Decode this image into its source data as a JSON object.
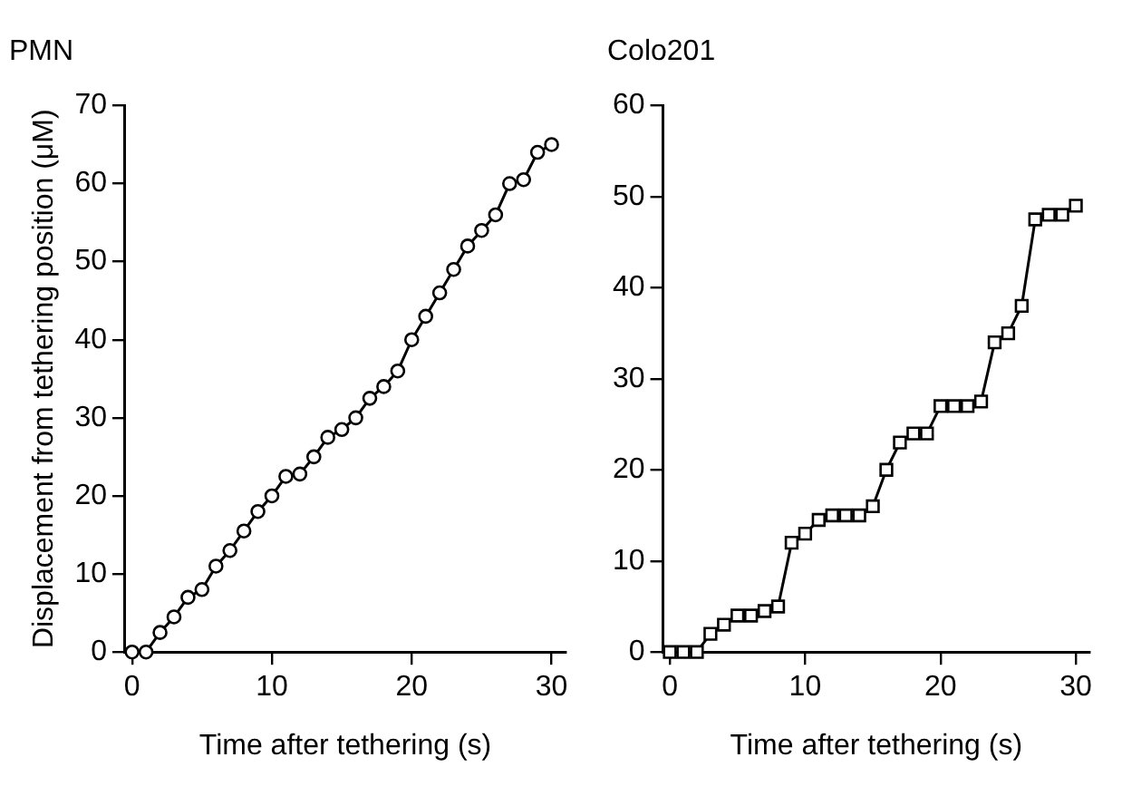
{
  "chart_data": [
    {
      "type": "line",
      "title": "PMN",
      "xlabel": "Time after tethering (s)",
      "ylabel": "Displacement from tethering position (μM)",
      "x": [
        0,
        1,
        2,
        3,
        4,
        5,
        6,
        7,
        8,
        9,
        10,
        11,
        12,
        13,
        14,
        15,
        16,
        17,
        18,
        19,
        20,
        21,
        22,
        23,
        24,
        25,
        26,
        27,
        28,
        29,
        30
      ],
      "series": [
        {
          "color": "#000000",
          "values": [
            0,
            0,
            2.5,
            4.5,
            7,
            8,
            11,
            13,
            15.5,
            18,
            20,
            22.5,
            22.8,
            25,
            27.5,
            28.5,
            30,
            32.5,
            34,
            36,
            40,
            43,
            46,
            49,
            52,
            54,
            56,
            60,
            60.5,
            64,
            65
          ]
        }
      ],
      "xlim": [
        -0.5,
        31
      ],
      "xticks": [
        0,
        10,
        20,
        30
      ],
      "ylim": [
        0,
        70
      ],
      "yticks": [
        0,
        10,
        20,
        30,
        40,
        50,
        60,
        70
      ],
      "grid": false,
      "legend": false,
      "marker": "circle",
      "line_style": "solid"
    },
    {
      "type": "line",
      "title": "Colo201",
      "xlabel": "Time after tethering (s)",
      "x": [
        0,
        1,
        2,
        3,
        4,
        5,
        6,
        7,
        8,
        9,
        10,
        11,
        12,
        13,
        14,
        15,
        16,
        17,
        18,
        19,
        20,
        21,
        22,
        23,
        24,
        25,
        26,
        27,
        28,
        29,
        30
      ],
      "series": [
        {
          "color": "#000000",
          "values": [
            0,
            0,
            0,
            2,
            3,
            4,
            4,
            4.5,
            5,
            12,
            13,
            14.5,
            15,
            15,
            15,
            16,
            20,
            23,
            24,
            24,
            27,
            27,
            27,
            27.5,
            34,
            35,
            38,
            47.5,
            48,
            48,
            49
          ]
        }
      ],
      "xlim": [
        -0.5,
        31
      ],
      "xticks": [
        0,
        10,
        20,
        30
      ],
      "ylim": [
        0,
        60
      ],
      "yticks": [
        0,
        10,
        20,
        30,
        40,
        50,
        60
      ],
      "grid": false,
      "legend": false,
      "marker": "square",
      "line_style": "solid"
    }
  ]
}
